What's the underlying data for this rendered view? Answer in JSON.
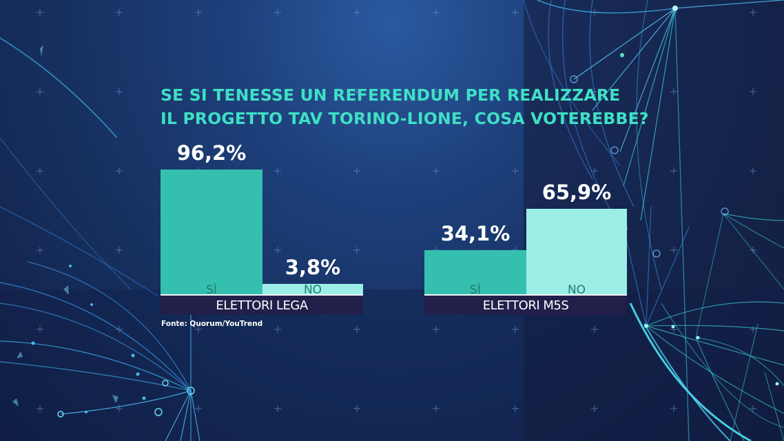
{
  "title_lines": [
    "SE SI TENESSE UN REFERENDUM PER REALIZZARE",
    "IL PROGETTO TAV TORINO-LIONE, COSA VOTEREBBE?"
  ],
  "source": "Fonte: Quorum/YouTrend",
  "colors": {
    "si": "#35bfae",
    "no": "#9ceee6",
    "title": "#3fe0c4",
    "band": "#221f4a",
    "value_text": "#ffffff",
    "category_text": "#1e7f70"
  },
  "chart_data": {
    "type": "bar",
    "title": "SE SI TENESSE UN REFERENDUM PER REALIZZARE IL PROGETTO TAV TORINO-LIONE, COSA VOTEREBBE?",
    "unit": "%",
    "categories": [
      "SÌ",
      "NO"
    ],
    "groups": [
      {
        "name": "ELETTORI LEGA",
        "bars": [
          {
            "category": "SÌ",
            "value": 96.2,
            "label": "96,2%"
          },
          {
            "category": "NO",
            "value": 3.8,
            "label": "3,8%"
          }
        ]
      },
      {
        "name": "ELETTORI M5S",
        "bars": [
          {
            "category": "SÌ",
            "value": 34.1,
            "label": "34,1%"
          },
          {
            "category": "NO",
            "value": 65.9,
            "label": "65,9%"
          }
        ]
      }
    ],
    "ylim": [
      0,
      100
    ],
    "grid": false,
    "legend": "none"
  }
}
